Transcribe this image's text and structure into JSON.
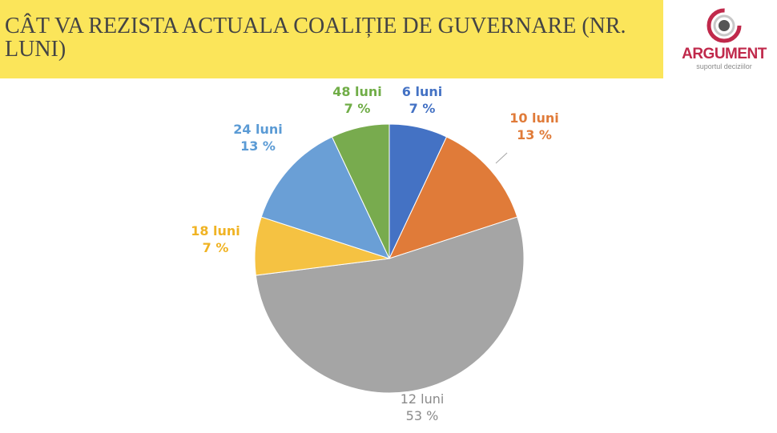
{
  "header": {
    "title": "CÂT VA REZISTA ACTUALA COALIȚIE DE GUVERNARE (NR. LUNI)"
  },
  "logo": {
    "name": "ARGUMENT",
    "tagline": "suportul deciziilor",
    "icon": "target-ring-icon",
    "color": "#c0294b"
  },
  "chart_data": {
    "type": "pie",
    "title": "",
    "categories": [
      "6 luni",
      "10 luni",
      "12 luni",
      "18 luni",
      "24 luni",
      "48 luni"
    ],
    "values": [
      7,
      13,
      53,
      7,
      13,
      7
    ],
    "value_labels": [
      "7 %",
      "13 %",
      "53 %",
      "7 %",
      "13 %",
      "7 %"
    ],
    "colors": [
      "#4472c4",
      "#e07b39",
      "#a5a5a5",
      "#f5c242",
      "#6a9fd6",
      "#78ab4e"
    ],
    "label_colors": [
      "#4472c4",
      "#e07b39",
      "#8a8a8a",
      "#f0b323",
      "#5b9bd5",
      "#70ad47"
    ],
    "start_angle": "12 o'clock",
    "direction": "clockwise",
    "legend": "none"
  }
}
